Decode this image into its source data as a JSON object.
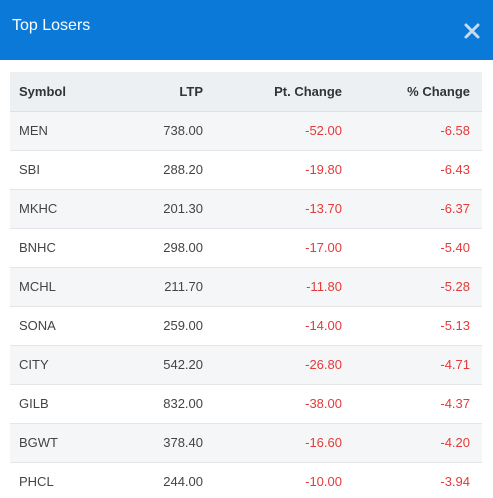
{
  "header": {
    "title": "Top Losers",
    "close_icon": "close-icon",
    "background_color": "#0b79d8"
  },
  "table": {
    "columns": [
      "Symbol",
      "LTP",
      "Pt. Change",
      "% Change"
    ],
    "negative_color": "#e43a3a",
    "rows": [
      {
        "symbol": "MEN",
        "ltp": "738.00",
        "pt_change": "-52.00",
        "pct_change": "-6.58"
      },
      {
        "symbol": "SBI",
        "ltp": "288.20",
        "pt_change": "-19.80",
        "pct_change": "-6.43"
      },
      {
        "symbol": "MKHC",
        "ltp": "201.30",
        "pt_change": "-13.70",
        "pct_change": "-6.37"
      },
      {
        "symbol": "BNHC",
        "ltp": "298.00",
        "pt_change": "-17.00",
        "pct_change": "-5.40"
      },
      {
        "symbol": "MCHL",
        "ltp": "211.70",
        "pt_change": "-11.80",
        "pct_change": "-5.28"
      },
      {
        "symbol": "SONA",
        "ltp": "259.00",
        "pt_change": "-14.00",
        "pct_change": "-5.13"
      },
      {
        "symbol": "CITY",
        "ltp": "542.20",
        "pt_change": "-26.80",
        "pct_change": "-4.71"
      },
      {
        "symbol": "GILB",
        "ltp": "832.00",
        "pt_change": "-38.00",
        "pct_change": "-4.37"
      },
      {
        "symbol": "BGWT",
        "ltp": "378.40",
        "pt_change": "-16.60",
        "pct_change": "-4.20"
      },
      {
        "symbol": "PHCL",
        "ltp": "244.00",
        "pt_change": "-10.00",
        "pct_change": "-3.94"
      }
    ]
  }
}
